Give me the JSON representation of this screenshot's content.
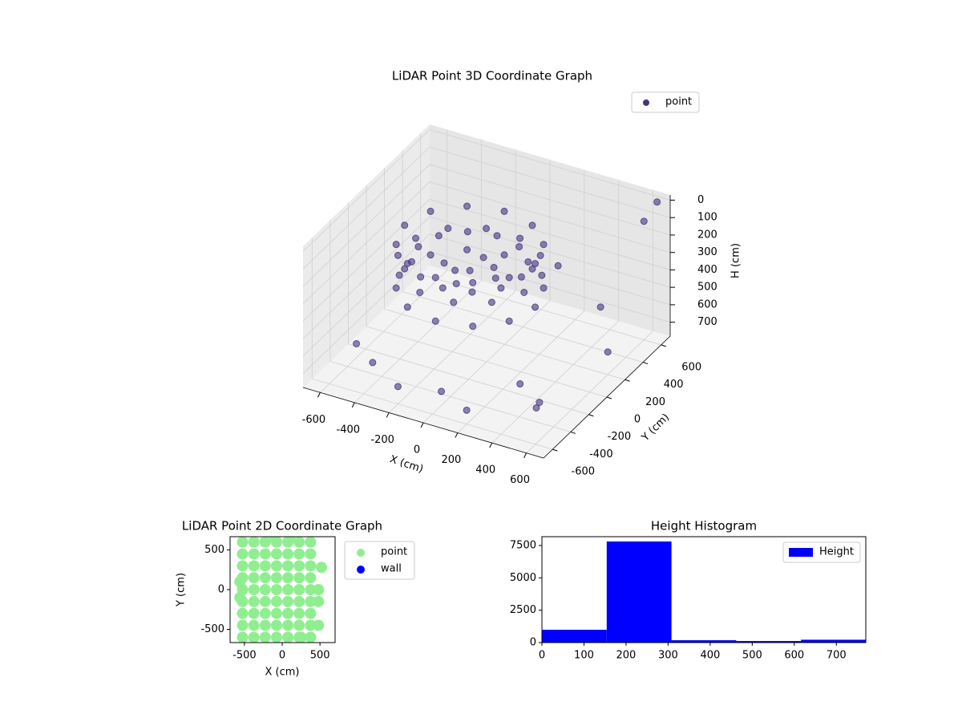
{
  "chart_data": [
    {
      "type": "scatter3d",
      "title": "LiDAR Point 3D Coordinate Graph",
      "xlabel": "X (cm)",
      "ylabel": "Y (cm)",
      "zlabel": "H (cm)",
      "xlim": [
        -700,
        700
      ],
      "ylim": [
        -700,
        700
      ],
      "zlim": [
        -30,
        780
      ],
      "zinverted": true,
      "xticks": [
        -600,
        -400,
        -200,
        0,
        200,
        400,
        600
      ],
      "yticks": [
        -600,
        -400,
        -200,
        0,
        200,
        400,
        600
      ],
      "zticks": [
        0,
        100,
        200,
        300,
        400,
        500,
        600,
        700
      ],
      "grid": true,
      "legend": "upper right",
      "series": [
        {
          "name": "point",
          "color": "#46337e",
          "x": [
            230,
            217,
            179,
            119,
            40,
            -52,
            -150,
            -248,
            -340,
            -419,
            -479,
            -517,
            -530,
            -517,
            -479,
            -419,
            -340,
            -248,
            -150,
            -52,
            40,
            119,
            179,
            217,
            230,
            179,
            40,
            -150,
            -340,
            -479,
            -530,
            -479,
            -340,
            -150,
            40,
            179,
            150,
            110,
            0,
            -150,
            -300,
            -410,
            -450,
            -410,
            -300,
            -150,
            0,
            110,
            -150,
            0,
            -300,
            -150,
            -150,
            -600,
            -400,
            200,
            500,
            600,
            400,
            -500,
            0,
            300,
            -200,
            650,
            600,
            650,
            -300,
            100
          ],
          "y": [
            100,
            198,
            290,
            369,
            429,
            467,
            480,
            467,
            429,
            369,
            290,
            198,
            100,
            2,
            -90,
            -169,
            -229,
            -267,
            -280,
            -267,
            -229,
            -169,
            -90,
            2,
            100,
            290,
            429,
            480,
            429,
            290,
            100,
            -90,
            -229,
            -280,
            -229,
            -90,
            100,
            250,
            360,
            400,
            360,
            250,
            100,
            -50,
            -160,
            -200,
            -160,
            -50,
            100,
            100,
            100,
            250,
            -50,
            -300,
            -500,
            -600,
            -400,
            200,
            500,
            600,
            -500,
            -200,
            -600,
            -650,
            600,
            650,
            650,
            600
          ],
          "z": [
            200,
            320,
            200,
            320,
            200,
            320,
            200,
            320,
            200,
            320,
            200,
            320,
            200,
            320,
            200,
            320,
            200,
            320,
            200,
            320,
            200,
            320,
            200,
            320,
            450,
            450,
            450,
            450,
            450,
            450,
            450,
            450,
            450,
            450,
            450,
            450,
            300,
            300,
            300,
            300,
            300,
            300,
            300,
            300,
            300,
            300,
            300,
            300,
            350,
            350,
            350,
            350,
            350,
            700,
            650,
            700,
            700,
            650,
            600,
            700,
            700,
            720,
            680,
            500,
            100,
            0,
            650,
            500
          ]
        }
      ]
    },
    {
      "type": "scatter",
      "title": "LiDAR Point 2D Coordinate Graph",
      "xlabel": "X (cm)",
      "ylabel": "Y (cm)",
      "xlim": [
        -690,
        700
      ],
      "ylim": [
        -667,
        667
      ],
      "xticks": [
        -500,
        0,
        500
      ],
      "yticks": [
        -500,
        0,
        500
      ],
      "legend": "outside right",
      "series": [
        {
          "name": "point",
          "color": "#90ee90",
          "x": [
            -525,
            -375,
            -225,
            -75,
            75,
            225,
            375,
            -525,
            -375,
            -225,
            -75,
            75,
            225,
            375,
            -525,
            -375,
            -225,
            -75,
            75,
            225,
            375,
            -525,
            -375,
            -225,
            -75,
            75,
            225,
            375,
            -525,
            -375,
            -225,
            -75,
            75,
            225,
            375,
            -525,
            -375,
            -225,
            -75,
            75,
            225,
            375,
            -525,
            -375,
            -225,
            -75,
            75,
            225,
            375,
            -525,
            -375,
            -225,
            -75,
            75,
            225,
            375,
            -525,
            -375,
            -225,
            -75,
            75,
            225,
            375,
            480,
            480,
            -560,
            -560,
            520,
            480,
            100,
            -100,
            250
          ],
          "y": [
            -600,
            -600,
            -600,
            -600,
            -600,
            -600,
            -600,
            -450,
            -450,
            -450,
            -450,
            -450,
            -450,
            -450,
            -300,
            -300,
            -300,
            -300,
            -300,
            -300,
            -300,
            -150,
            -150,
            -150,
            -150,
            -150,
            -150,
            -150,
            0,
            0,
            0,
            0,
            0,
            0,
            0,
            150,
            150,
            150,
            150,
            150,
            150,
            150,
            300,
            300,
            300,
            300,
            300,
            300,
            300,
            450,
            450,
            450,
            450,
            450,
            450,
            450,
            600,
            600,
            600,
            600,
            600,
            600,
            600,
            -150,
            0,
            -100,
            100,
            280,
            -450,
            650,
            650,
            -600
          ]
        },
        {
          "name": "wall",
          "color": "#0000ff",
          "x": [],
          "y": []
        }
      ]
    },
    {
      "type": "histogram",
      "title": "Height Histogram",
      "name": "Height",
      "color": "#0000ff",
      "bins": [
        0,
        154,
        308,
        462,
        616,
        770
      ],
      "values": [
        990,
        7810,
        180,
        120,
        220
      ],
      "xlim": [
        0,
        770
      ],
      "ylim": [
        0,
        8180
      ],
      "xticks": [
        0,
        100,
        200,
        300,
        400,
        500,
        600,
        700
      ],
      "yticks": [
        0,
        2500,
        5000,
        7500
      ],
      "legend": "upper right"
    }
  ]
}
